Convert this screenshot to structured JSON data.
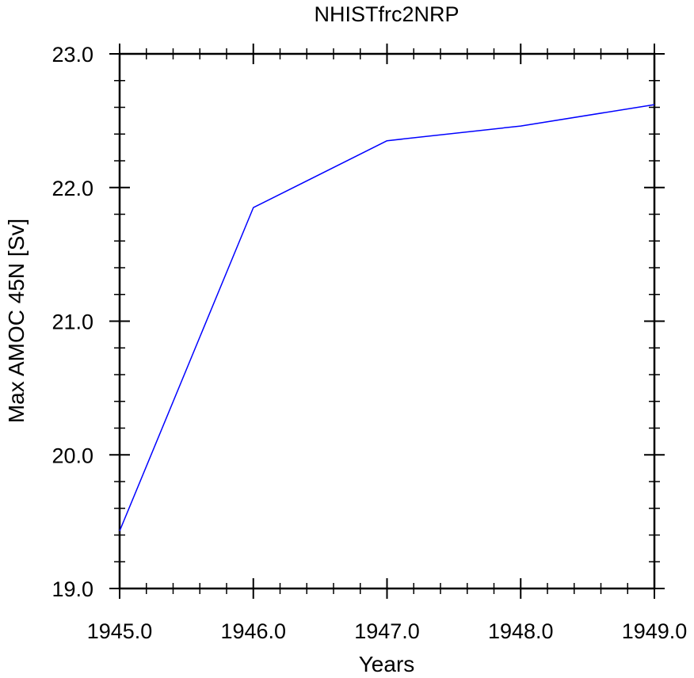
{
  "chart_data": {
    "type": "line",
    "title": "NHISTfrc2NRP",
    "xlabel": "Years",
    "ylabel": "Max AMOC 45N [Sv]",
    "xlim": [
      1945.0,
      1949.0
    ],
    "ylim": [
      19.0,
      23.0
    ],
    "x_ticks": [
      "1945.0",
      "1946.0",
      "1947.0",
      "1948.0",
      "1949.0"
    ],
    "y_ticks": [
      "19.0",
      "20.0",
      "21.0",
      "22.0",
      "23.0"
    ],
    "grid": false,
    "series": [
      {
        "color": "#0000ff",
        "x": [
          1945.0,
          1946.0,
          1947.0,
          1948.0,
          1949.0
        ],
        "y": [
          19.43,
          21.85,
          22.35,
          22.46,
          22.62
        ]
      }
    ]
  }
}
